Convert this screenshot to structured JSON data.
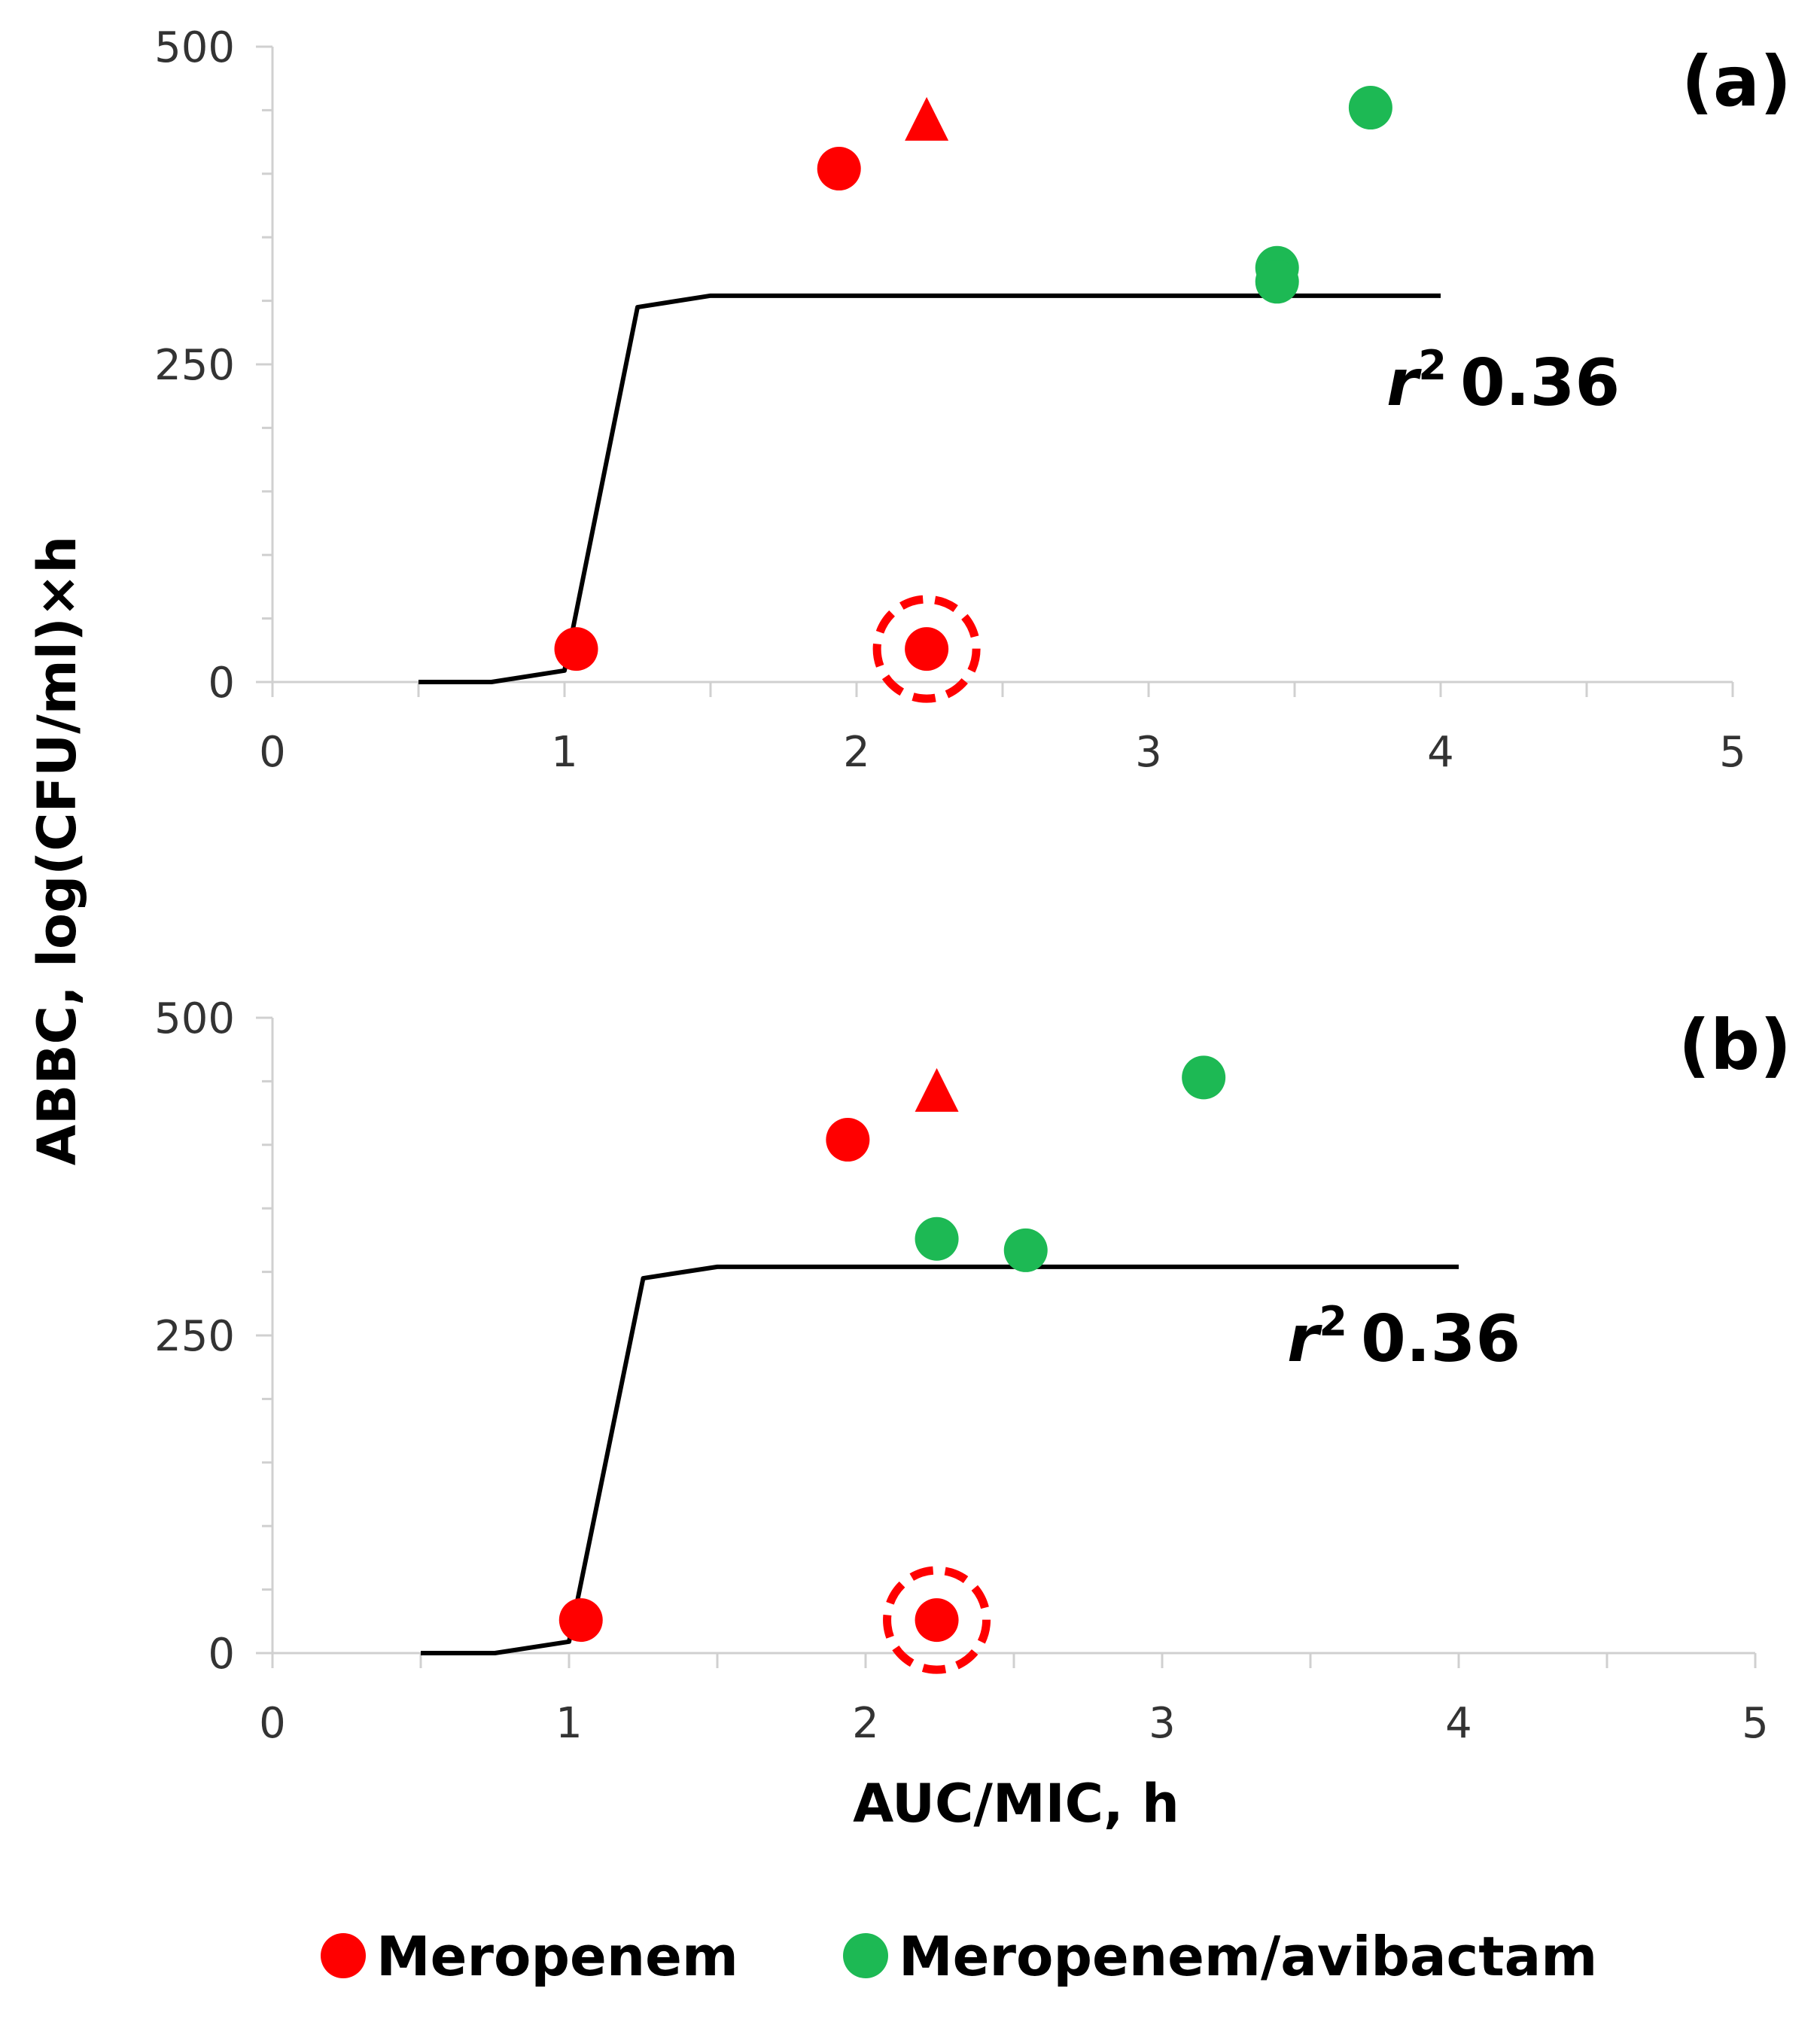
{
  "chart_data": {
    "type": "scatter",
    "xlabel": "AUC/MIC, h",
    "ylabel": "ABBC, log(CFU/ml)×h",
    "xlim": [
      0,
      5
    ],
    "ylim": [
      0,
      500
    ],
    "x_ticks": [
      "0",
      "1",
      "2",
      "3",
      "4",
      "5"
    ],
    "y_ticks": [
      "0",
      "250",
      "500"
    ],
    "grid": false,
    "legend_position": "bottom",
    "legend": [
      {
        "name": "Meropenem",
        "color": "#ff0000"
      },
      {
        "name": "Meropenem/avibactam",
        "color": "#1db954"
      }
    ],
    "panels": [
      {
        "label": "(a)",
        "r2_symbol": "r",
        "r2_exponent": "2",
        "r2_value": "0.36",
        "fit_line": [
          [
            0.5,
            0
          ],
          [
            0.75,
            0
          ],
          [
            1.0,
            9
          ],
          [
            1.25,
            295
          ],
          [
            1.5,
            304
          ],
          [
            4.0,
            304
          ]
        ],
        "series": [
          {
            "name": "Meropenem",
            "color": "#ff0000",
            "marker": "circle",
            "points": [
              [
                1.04,
                26
              ],
              [
                1.94,
                404
              ],
              [
                2.24,
                26
              ]
            ]
          },
          {
            "name": "Meropenem",
            "color": "#ff0000",
            "marker": "triangle",
            "points": [
              [
                2.24,
                442
              ]
            ]
          },
          {
            "name": "Meropenem/avibactam",
            "color": "#1db954",
            "marker": "circle",
            "points": [
              [
                3.44,
                326
              ],
              [
                3.44,
                315
              ],
              [
                3.76,
                452
              ]
            ]
          }
        ],
        "highlighted": [
          [
            2.24,
            26
          ]
        ]
      },
      {
        "label": "(b)",
        "r2_symbol": "r",
        "r2_exponent": "2",
        "r2_value": "0.36",
        "fit_line": [
          [
            0.5,
            0
          ],
          [
            0.75,
            0
          ],
          [
            1.0,
            9
          ],
          [
            1.25,
            295
          ],
          [
            1.5,
            304
          ],
          [
            4.0,
            304
          ]
        ],
        "series": [
          {
            "name": "Meropenem",
            "color": "#ff0000",
            "marker": "circle",
            "points": [
              [
                1.04,
                26
              ],
              [
                1.94,
                404
              ],
              [
                2.24,
                26
              ]
            ]
          },
          {
            "name": "Meropenem",
            "color": "#ff0000",
            "marker": "triangle",
            "points": [
              [
                2.24,
                442
              ]
            ]
          },
          {
            "name": "Meropenem/avibactam",
            "color": "#1db954",
            "marker": "circle",
            "points": [
              [
                2.24,
                326
              ],
              [
                2.54,
                317
              ],
              [
                3.14,
                453
              ]
            ]
          }
        ],
        "highlighted": [
          [
            2.24,
            26
          ]
        ]
      }
    ]
  }
}
